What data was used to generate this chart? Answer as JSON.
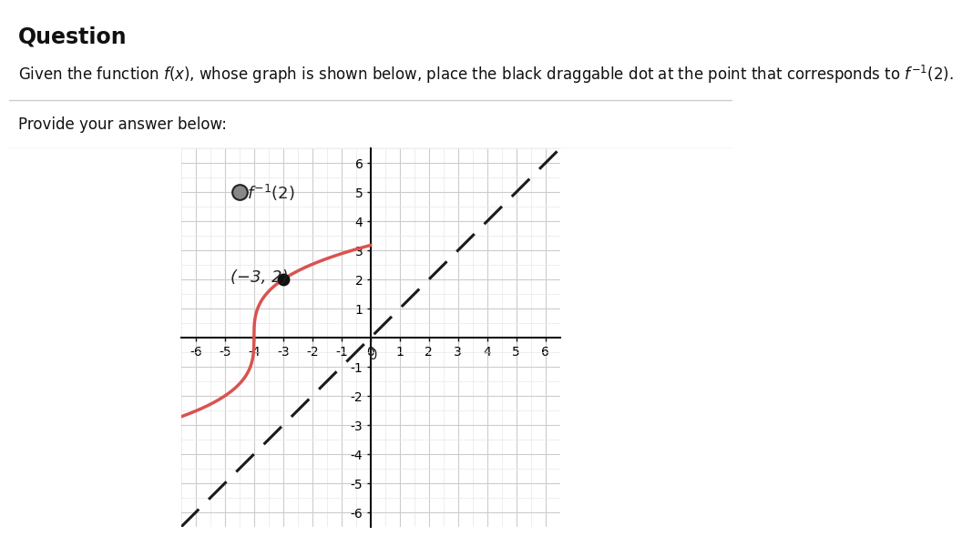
{
  "title_text": "Question",
  "problem_text": "Given the function f(x), whose graph is shown below, place the black draggable dot at the point that corresponds to f⁻¹(2).",
  "provide_text": "Provide your answer below:",
  "xlim": [
    -6.5,
    6.5
  ],
  "ylim": [
    -6.5,
    6.5
  ],
  "xticks": [
    -6,
    -5,
    -4,
    -3,
    -2,
    -1,
    0,
    1,
    2,
    3,
    4,
    5,
    6
  ],
  "yticks": [
    -6,
    -5,
    -4,
    -3,
    -2,
    -1,
    1,
    2,
    3,
    4,
    5,
    6
  ],
  "curve_color": "#d9534f",
  "dashed_line_color": "#1a1a1a",
  "dot_on_curve_x": -3,
  "dot_on_curve_y": 2,
  "dot_draggable_x": -4.5,
  "dot_draggable_y": 5.0,
  "label_point": "(−3, 2)",
  "background_color": "#ffffff",
  "grid_major_color": "#cccccc",
  "grid_minor_color": "#e8e8e8"
}
